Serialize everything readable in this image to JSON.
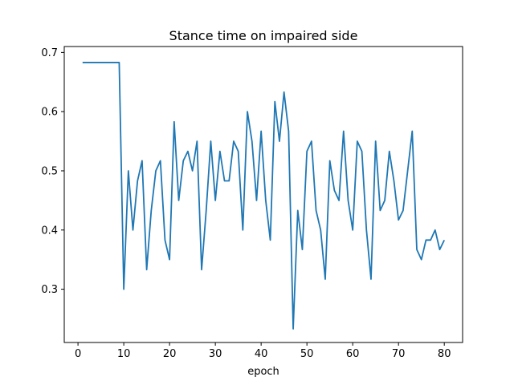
{
  "chart_data": {
    "type": "line",
    "title": "Stance time on impaired side",
    "xlabel": "epoch",
    "ylabel": "",
    "xlim": [
      -3,
      84
    ],
    "ylim": [
      0.21,
      0.71
    ],
    "xticks": [
      0,
      10,
      20,
      30,
      40,
      50,
      60,
      70,
      80
    ],
    "yticks": [
      0.3,
      0.4,
      0.5,
      0.6,
      0.7
    ],
    "grid": false,
    "series": [
      {
        "color": "#1f77b4",
        "x": [
          1,
          2,
          3,
          4,
          5,
          6,
          7,
          8,
          9,
          10,
          11,
          12,
          13,
          14,
          15,
          16,
          17,
          18,
          19,
          20,
          21,
          22,
          23,
          24,
          25,
          26,
          27,
          28,
          29,
          30,
          31,
          32,
          33,
          34,
          35,
          36,
          37,
          38,
          39,
          40,
          41,
          42,
          43,
          44,
          45,
          46,
          47,
          48,
          49,
          50,
          51,
          52,
          53,
          54,
          55,
          56,
          57,
          58,
          59,
          60,
          61,
          62,
          63,
          64,
          65,
          66,
          67,
          68,
          69,
          70,
          71,
          72,
          73,
          74,
          75,
          76,
          77,
          78,
          79,
          80
        ],
        "y": [
          0.683,
          0.683,
          0.683,
          0.683,
          0.683,
          0.683,
          0.683,
          0.683,
          0.683,
          0.3,
          0.5,
          0.4,
          0.483,
          0.517,
          0.333,
          0.433,
          0.5,
          0.517,
          0.383,
          0.35,
          0.583,
          0.45,
          0.517,
          0.533,
          0.5,
          0.55,
          0.333,
          0.433,
          0.55,
          0.45,
          0.533,
          0.483,
          0.483,
          0.55,
          0.533,
          0.4,
          0.6,
          0.55,
          0.45,
          0.567,
          0.45,
          0.383,
          0.617,
          0.55,
          0.633,
          0.567,
          0.233,
          0.433,
          0.367,
          0.533,
          0.55,
          0.433,
          0.4,
          0.317,
          0.517,
          0.467,
          0.45,
          0.567,
          0.45,
          0.4,
          0.55,
          0.533,
          0.4,
          0.317,
          0.55,
          0.433,
          0.45,
          0.533,
          0.483,
          0.417,
          0.433,
          0.5,
          0.567,
          0.367,
          0.35,
          0.383,
          0.383,
          0.4,
          0.367,
          0.383
        ]
      }
    ]
  }
}
